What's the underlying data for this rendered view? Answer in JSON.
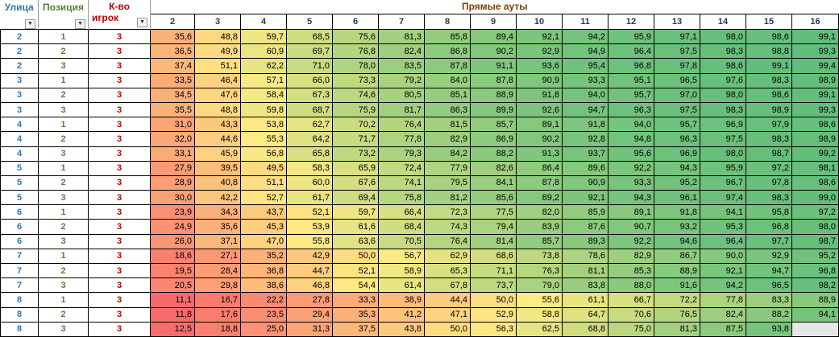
{
  "headers": {
    "street": "Улица",
    "position": "Позиция",
    "players_line1": "К-во",
    "players_line2": "игрок",
    "title": "Прямые ауты"
  },
  "icons": {
    "dropdown": "filter-dropdown-icon",
    "active_filter": "filter-active-icon"
  },
  "outs": [
    "2",
    "3",
    "4",
    "5",
    "6",
    "7",
    "8",
    "9",
    "10",
    "11",
    "12",
    "13",
    "14",
    "15",
    "16"
  ],
  "rows": [
    {
      "street": "2",
      "position": "1",
      "players": "3",
      "values": [
        "35,6",
        "48,8",
        "59,7",
        "68,5",
        "75,6",
        "81,3",
        "85,8",
        "89,4",
        "92,1",
        "94,2",
        "95,9",
        "97,1",
        "98,0",
        "98,6",
        "99,1"
      ]
    },
    {
      "street": "2",
      "position": "2",
      "players": "3",
      "values": [
        "36,5",
        "49,9",
        "60,9",
        "69,7",
        "76,8",
        "82,4",
        "86,8",
        "90,2",
        "92,9",
        "94,9",
        "96,4",
        "97,5",
        "98,3",
        "98,8",
        "99,3"
      ]
    },
    {
      "street": "2",
      "position": "3",
      "players": "3",
      "values": [
        "37,4",
        "51,1",
        "62,2",
        "71,0",
        "78,0",
        "83,5",
        "87,8",
        "91,1",
        "93,6",
        "95,4",
        "96,8",
        "97,8",
        "98,6",
        "99,1",
        "99,4"
      ]
    },
    {
      "street": "3",
      "position": "1",
      "players": "3",
      "values": [
        "33,5",
        "46,4",
        "57,1",
        "66,0",
        "73,3",
        "79,2",
        "84,0",
        "87,8",
        "90,9",
        "93,3",
        "95,1",
        "96,5",
        "97,6",
        "98,3",
        "98,9"
      ]
    },
    {
      "street": "3",
      "position": "2",
      "players": "3",
      "values": [
        "34,5",
        "47,6",
        "58,4",
        "67,3",
        "74,6",
        "80,5",
        "85,1",
        "88,9",
        "91,8",
        "94,0",
        "95,7",
        "97,0",
        "98,0",
        "98,6",
        "99,1"
      ]
    },
    {
      "street": "3",
      "position": "3",
      "players": "3",
      "values": [
        "35,5",
        "48,8",
        "59,8",
        "68,7",
        "75,9",
        "81,7",
        "86,3",
        "89,9",
        "92,6",
        "94,7",
        "96,3",
        "97,5",
        "98,3",
        "98,9",
        "99,3"
      ]
    },
    {
      "street": "4",
      "position": "1",
      "players": "3",
      "values": [
        "31,0",
        "43,3",
        "53,8",
        "62,7",
        "70,2",
        "76,4",
        "81,5",
        "85,7",
        "89,1",
        "91,8",
        "94,0",
        "95,7",
        "96,9",
        "97,9",
        "98,6"
      ]
    },
    {
      "street": "4",
      "position": "2",
      "players": "3",
      "values": [
        "32,0",
        "44,6",
        "55,3",
        "64,2",
        "71,7",
        "77,8",
        "82,9",
        "86,9",
        "90,2",
        "92,8",
        "94,8",
        "96,3",
        "97,5",
        "98,3",
        "98,9"
      ]
    },
    {
      "street": "4",
      "position": "3",
      "players": "3",
      "values": [
        "33,1",
        "45,9",
        "56,8",
        "65,8",
        "73,2",
        "79,3",
        "84,2",
        "88,2",
        "91,3",
        "93,7",
        "95,6",
        "96,9",
        "98,0",
        "98,7",
        "99,2"
      ]
    },
    {
      "street": "5",
      "position": "1",
      "players": "3",
      "values": [
        "27,9",
        "39,5",
        "49,5",
        "58,3",
        "65,9",
        "72,4",
        "77,9",
        "82,6",
        "86,4",
        "89,6",
        "92,2",
        "94,3",
        "95,9",
        "97,2",
        "98,1"
      ]
    },
    {
      "street": "5",
      "position": "2",
      "players": "3",
      "values": [
        "28,9",
        "40,8",
        "51,1",
        "60,0",
        "67,6",
        "74,1",
        "79,5",
        "84,1",
        "87,8",
        "90,9",
        "93,3",
        "95,2",
        "96,7",
        "97,8",
        "98,6"
      ]
    },
    {
      "street": "5",
      "position": "3",
      "players": "3",
      "values": [
        "30,0",
        "42,2",
        "52,7",
        "61,7",
        "69,4",
        "75,8",
        "81,2",
        "85,6",
        "89,2",
        "92,1",
        "94,3",
        "96,1",
        "97,4",
        "98,3",
        "99,0"
      ]
    },
    {
      "street": "6",
      "position": "1",
      "players": "3",
      "values": [
        "23,9",
        "34,3",
        "43,7",
        "52,1",
        "59,7",
        "66,4",
        "72,3",
        "77,5",
        "82,0",
        "85,9",
        "89,1",
        "91,8",
        "94,1",
        "95,8",
        "97,2"
      ]
    },
    {
      "street": "6",
      "position": "2",
      "players": "3",
      "values": [
        "24,9",
        "35,6",
        "45,3",
        "53,9",
        "61,6",
        "68,4",
        "74,3",
        "79,4",
        "83,9",
        "87,6",
        "90,7",
        "93,2",
        "95,3",
        "96,8",
        "98,0"
      ]
    },
    {
      "street": "6",
      "position": "3",
      "players": "3",
      "values": [
        "26,0",
        "37,1",
        "47,0",
        "55,8",
        "63,6",
        "70,5",
        "76,4",
        "81,4",
        "85,7",
        "89,3",
        "92,2",
        "94,6",
        "96,4",
        "97,7",
        "98,7"
      ]
    },
    {
      "street": "7",
      "position": "1",
      "players": "3",
      "values": [
        "18,6",
        "27,1",
        "35,2",
        "42,9",
        "50,0",
        "56,7",
        "62,9",
        "68,6",
        "73,8",
        "78,6",
        "82,9",
        "86,7",
        "90,0",
        "92,9",
        "95,2"
      ]
    },
    {
      "street": "7",
      "position": "2",
      "players": "3",
      "values": [
        "19,5",
        "28,4",
        "36,8",
        "44,7",
        "52,1",
        "58,9",
        "65,3",
        "71,1",
        "76,3",
        "81,1",
        "85,3",
        "88,9",
        "92,1",
        "94,7",
        "96,8"
      ]
    },
    {
      "street": "7",
      "position": "3",
      "players": "3",
      "values": [
        "20,5",
        "29,8",
        "38,6",
        "46,8",
        "54,4",
        "61,4",
        "67,8",
        "73,7",
        "79,0",
        "83,8",
        "88,0",
        "91,6",
        "94,2",
        "96,5",
        "98,2"
      ]
    },
    {
      "street": "8",
      "position": "1",
      "players": "3",
      "values": [
        "11,1",
        "16,7",
        "22,2",
        "27,8",
        "33,3",
        "38,9",
        "44,4",
        "50,0",
        "55,6",
        "61,1",
        "66,7",
        "72,2",
        "77,8",
        "83,3",
        "88,9"
      ]
    },
    {
      "street": "8",
      "position": "2",
      "players": "3",
      "values": [
        "11,8",
        "17,6",
        "23,5",
        "29,4",
        "35,3",
        "41,2",
        "47,1",
        "52,9",
        "58,8",
        "64,7",
        "70,6",
        "76,5",
        "82,4",
        "88,2",
        "94,1"
      ]
    },
    {
      "street": "8",
      "position": "3",
      "players": "3",
      "values": [
        "12,5",
        "18,8",
        "25,0",
        "31,3",
        "37,5",
        "43,8",
        "50,0",
        "56,3",
        "62,5",
        "68,8",
        "75,0",
        "81,3",
        "87,5",
        "93,8",
        ""
      ]
    }
  ],
  "colors": {
    "low": "#F8696B",
    "mid": "#FFEB84",
    "high": "#63BE7B"
  }
}
